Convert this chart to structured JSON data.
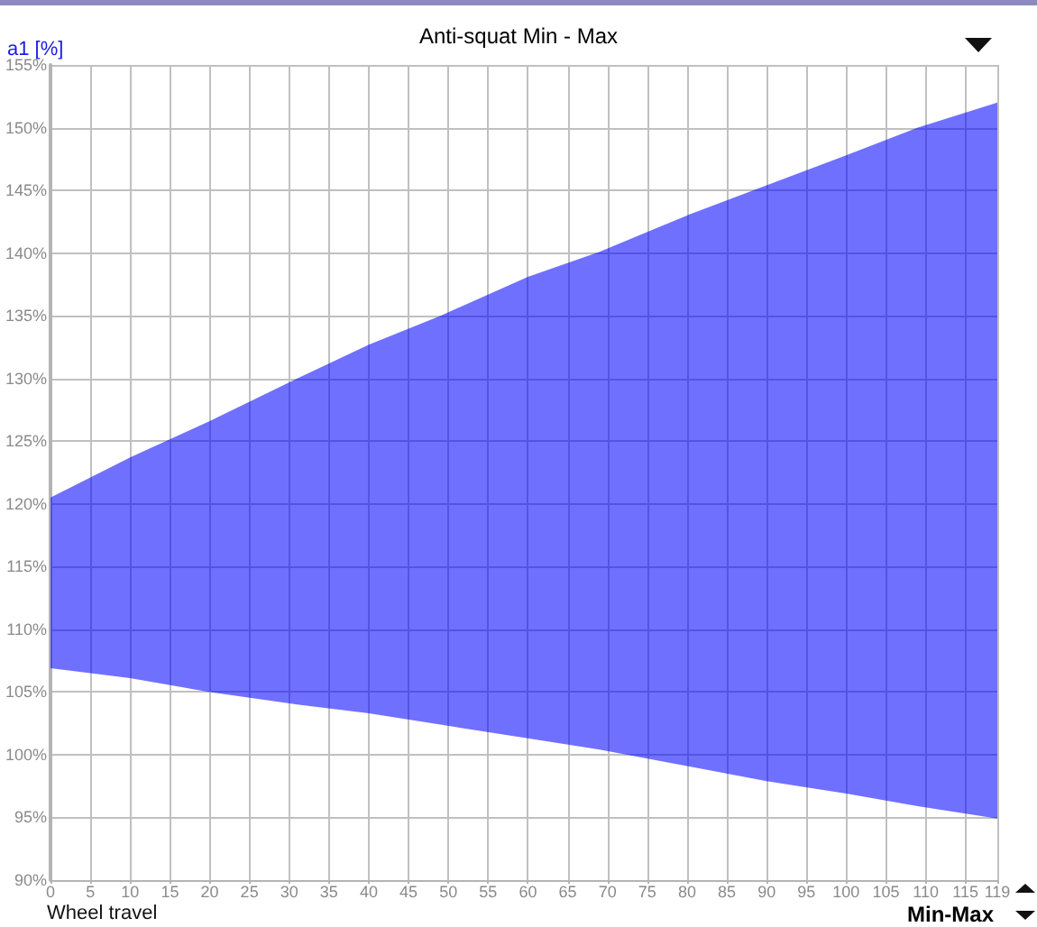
{
  "chart_data": {
    "type": "line",
    "title": "Anti-squat Min - Max",
    "xlabel": "Wheel travel",
    "ylabel": "a1 [%]",
    "annotations": [
      "Min-Max"
    ],
    "x": [
      0,
      10,
      20,
      31,
      40,
      49,
      60,
      69,
      80,
      90,
      100,
      109,
      119
    ],
    "series": [
      {
        "color": "#7070ff",
        "values": [
          null,
          null,
          null,
          null,
          null,
          null,
          null,
          null,
          null,
          null,
          null,
          null,
          null
        ],
        "upper": [
          120.5,
          123.7,
          126.6,
          130,
          132.7,
          135,
          138.1,
          140.1,
          143,
          145.4,
          147.8,
          150,
          152
        ],
        "lower": [
          106.9,
          106.1,
          105,
          104,
          103.3,
          102.4,
          101.3,
          100.4,
          99.1,
          97.9,
          96.9,
          95.9,
          94.9
        ]
      }
    ],
    "xlim": [
      0,
      119
    ],
    "xticks": [
      0,
      5,
      10,
      15,
      20,
      25,
      30,
      35,
      40,
      45,
      50,
      55,
      60,
      65,
      70,
      75,
      80,
      85,
      90,
      95,
      100,
      105,
      110,
      115,
      119
    ],
    "ylim": [
      90,
      155
    ],
    "yticks": [
      {
        "value": 90,
        "label": "90%"
      },
      {
        "value": 95,
        "label": "95%"
      },
      {
        "value": 100,
        "label": "100%"
      },
      {
        "value": 105,
        "label": "105%"
      },
      {
        "value": 110,
        "label": "110%"
      },
      {
        "value": 115,
        "label": "115%"
      },
      {
        "value": 120,
        "label": "120%"
      },
      {
        "value": 125,
        "label": "125%"
      },
      {
        "value": 130,
        "label": "130%"
      },
      {
        "value": 135,
        "label": "135%"
      },
      {
        "value": 140,
        "label": "140%"
      },
      {
        "value": 145,
        "label": "145%"
      },
      {
        "value": 150,
        "label": "150%"
      },
      {
        "value": 155,
        "label": "155%"
      }
    ],
    "grid": true
  }
}
